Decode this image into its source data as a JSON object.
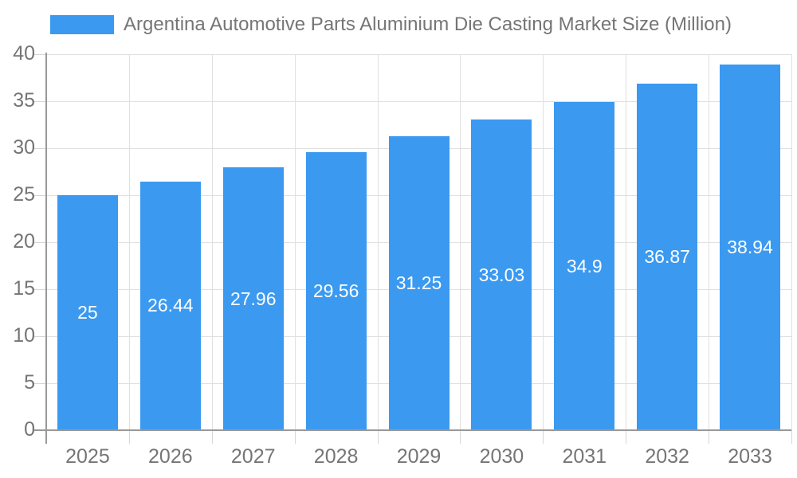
{
  "chart_data": {
    "type": "bar",
    "title": "Argentina Automotive Parts Aluminium Die Casting Market Size (Million)",
    "categories": [
      "2025",
      "2026",
      "2027",
      "2028",
      "2029",
      "2030",
      "2031",
      "2032",
      "2033"
    ],
    "values": [
      25,
      26.44,
      27.96,
      29.56,
      31.25,
      33.03,
      34.9,
      36.87,
      38.94
    ],
    "value_labels": [
      "25",
      "26.44",
      "27.96",
      "29.56",
      "31.25",
      "33.03",
      "34.9",
      "36.87",
      "38.94"
    ],
    "xlabel": "",
    "ylabel": "",
    "ylim": [
      0,
      40
    ],
    "yticks": [
      0,
      5,
      10,
      15,
      20,
      25,
      30,
      35,
      40
    ],
    "grid": true,
    "legend_position": "top-left",
    "colors": {
      "bar": "#3B99F0",
      "bar_label": "#FFFFFF",
      "axis_text": "#757575",
      "grid_line": "#E0E0E0",
      "tick_mark": "#D6D6D6",
      "axis_line": "#999999",
      "background": "#FFFFFF"
    }
  }
}
